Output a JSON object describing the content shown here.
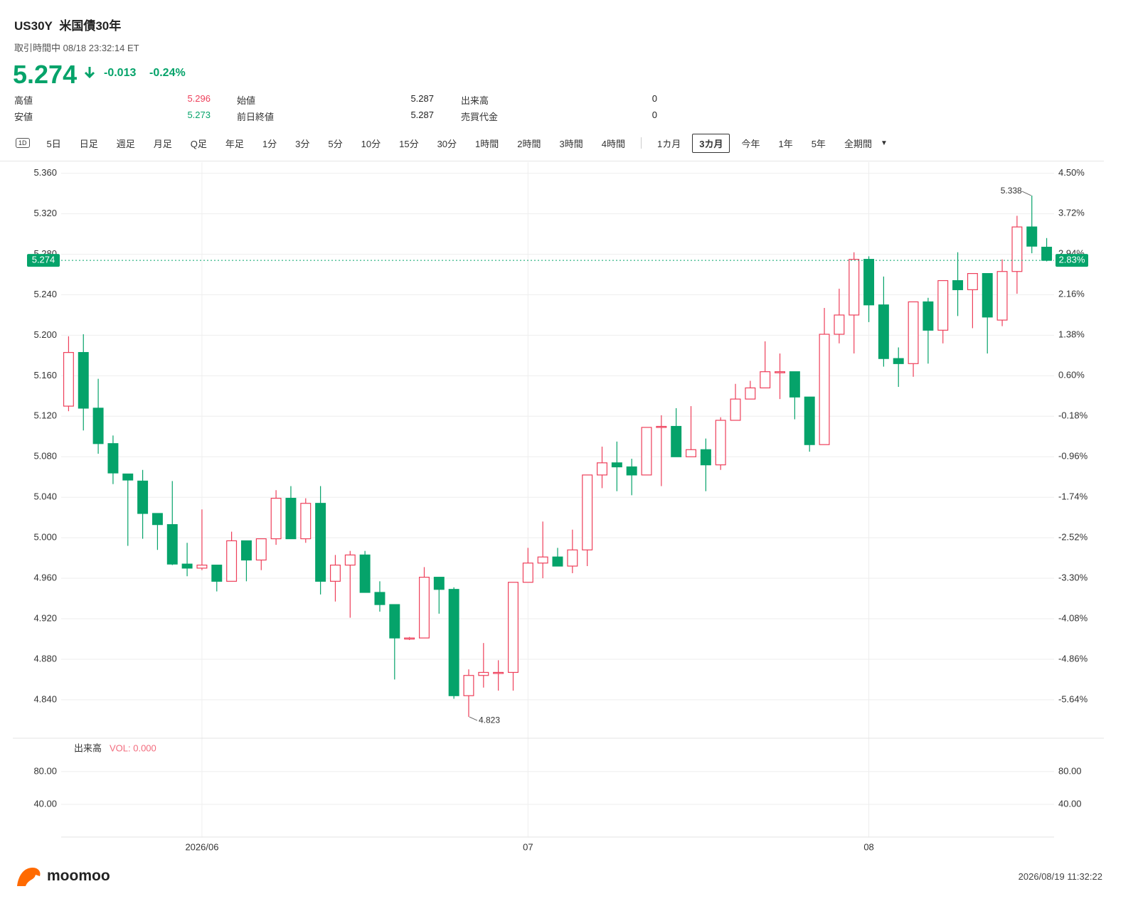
{
  "header": {
    "symbol": "US30Y",
    "name": "米国債30年",
    "status": "取引時間中 08/18 23:32:14 ET",
    "price": "5.274",
    "change": "-0.013",
    "change_pct": "-0.24%"
  },
  "stats": [
    [
      {
        "label": "高値",
        "value": "5.296"
      },
      {
        "label": "始値",
        "value": "5.287"
      },
      {
        "label": "出来高",
        "value": "0"
      }
    ],
    [
      {
        "label": "安値",
        "value": "5.273"
      },
      {
        "label": "前日終値",
        "value": "5.287"
      },
      {
        "label": "売買代金",
        "value": "0"
      }
    ]
  ],
  "toolbar": {
    "icon": "1D",
    "intervals": [
      "5日",
      "日足",
      "週足",
      "月足",
      "Q足",
      "年足",
      "1分",
      "3分",
      "5分",
      "10分",
      "15分",
      "30分",
      "1時間",
      "2時間",
      "3時間",
      "4時間"
    ],
    "ranges": [
      "1カ月",
      "3カ月",
      "今年",
      "1年",
      "5年",
      "全期間"
    ],
    "selected_range": 1
  },
  "chart_data": [
    {
      "type": "candlestick",
      "categories": [
        null,
        null,
        null,
        null,
        null,
        null,
        null,
        null,
        null,
        "2026/06",
        null,
        null,
        null,
        null,
        null,
        null,
        null,
        null,
        null,
        null,
        null,
        null,
        null,
        null,
        null,
        null,
        null,
        null,
        null,
        null,
        null,
        "07",
        null,
        null,
        null,
        null,
        null,
        null,
        null,
        null,
        null,
        null,
        null,
        null,
        null,
        null,
        null,
        null,
        null,
        null,
        null,
        null,
        null,
        null,
        "08",
        null,
        null,
        null,
        null,
        null,
        null,
        null,
        null,
        null,
        null,
        null,
        null
      ],
      "open": [
        5.13,
        5.183,
        5.128,
        5.093,
        5.063,
        5.056,
        5.024,
        5.013,
        4.974,
        4.97,
        4.973,
        4.957,
        4.997,
        4.978,
        4.999,
        5.039,
        4.999,
        5.034,
        4.957,
        4.973,
        4.983,
        4.946,
        4.934,
        4.9,
        4.901,
        4.961,
        4.949,
        4.844,
        4.864,
        4.866,
        4.867,
        4.956,
        4.975,
        4.981,
        4.972,
        4.988,
        5.062,
        5.074,
        5.07,
        5.062,
        5.109,
        5.11,
        5.08,
        5.087,
        5.072,
        5.116,
        5.137,
        5.148,
        5.163,
        5.164,
        5.139,
        5.092,
        5.201,
        5.22,
        5.275,
        5.23,
        5.177,
        5.172,
        5.233,
        5.205,
        5.254,
        5.245,
        5.261,
        5.215,
        5.263,
        5.307,
        5.287
      ],
      "high": [
        5.199,
        5.201,
        5.157,
        5.101,
        5.063,
        5.067,
        5.024,
        5.056,
        4.995,
        5.028,
        4.973,
        5.006,
        4.997,
        4.999,
        5.047,
        5.051,
        5.039,
        5.051,
        4.983,
        4.987,
        4.987,
        4.957,
        4.934,
        4.902,
        4.971,
        4.961,
        4.951,
        4.87,
        4.896,
        4.879,
        4.956,
        4.99,
        5.016,
        4.99,
        5.008,
        5.062,
        5.09,
        5.095,
        5.078,
        5.109,
        5.121,
        5.128,
        5.13,
        5.098,
        5.119,
        5.152,
        5.155,
        5.194,
        5.182,
        5.164,
        5.139,
        5.227,
        5.246,
        5.282,
        5.278,
        5.258,
        5.188,
        5.233,
        5.237,
        5.254,
        5.282,
        5.261,
        5.261,
        5.275,
        5.318,
        5.338,
        5.296
      ],
      "low": [
        5.125,
        5.106,
        5.083,
        5.053,
        4.992,
        4.999,
        4.988,
        4.973,
        4.962,
        4.968,
        4.947,
        4.957,
        4.957,
        4.968,
        4.993,
        4.999,
        4.995,
        4.944,
        4.937,
        4.921,
        4.946,
        4.927,
        4.86,
        4.899,
        4.901,
        4.925,
        4.841,
        4.823,
        4.852,
        4.849,
        4.849,
        4.956,
        4.96,
        4.972,
        4.965,
        4.972,
        5.049,
        5.046,
        5.042,
        5.062,
        5.051,
        5.08,
        5.08,
        5.046,
        5.067,
        5.116,
        5.137,
        5.148,
        5.137,
        5.117,
        5.085,
        5.092,
        5.192,
        5.182,
        5.213,
        5.169,
        5.149,
        5.159,
        5.172,
        5.192,
        5.219,
        5.207,
        5.182,
        5.209,
        5.241,
        5.281,
        5.273
      ],
      "close": [
        5.183,
        5.128,
        5.093,
        5.064,
        5.057,
        5.024,
        5.013,
        4.974,
        4.97,
        4.973,
        4.957,
        4.997,
        4.978,
        4.999,
        5.039,
        4.999,
        5.034,
        4.957,
        4.973,
        4.983,
        4.946,
        4.934,
        4.901,
        4.901,
        4.961,
        4.949,
        4.844,
        4.864,
        4.867,
        4.867,
        4.956,
        4.975,
        4.981,
        4.972,
        4.988,
        5.062,
        5.074,
        5.07,
        5.062,
        5.109,
        5.11,
        5.08,
        5.087,
        5.072,
        5.116,
        5.137,
        5.148,
        5.164,
        5.164,
        5.139,
        5.092,
        5.201,
        5.22,
        5.275,
        5.23,
        5.177,
        5.172,
        5.233,
        5.205,
        5.254,
        5.245,
        5.261,
        5.218,
        5.263,
        5.307,
        5.288,
        5.274
      ],
      "up_color": "#ee3f5a",
      "down_color": "#05a36a",
      "ylim": [
        4.802,
        5.371
      ],
      "yticks": [
        {
          "value": 5.36,
          "label": "5.360"
        },
        {
          "value": 5.32,
          "label": "5.320"
        },
        {
          "value": 5.28,
          "label": "5.280"
        },
        {
          "value": 5.24,
          "label": "5.240"
        },
        {
          "value": 5.2,
          "label": "5.200"
        },
        {
          "value": 5.16,
          "label": "5.160"
        },
        {
          "value": 5.12,
          "label": "5.120"
        },
        {
          "value": 5.08,
          "label": "5.080"
        },
        {
          "value": 5.04,
          "label": "5.040"
        },
        {
          "value": 5.0,
          "label": "5.000"
        },
        {
          "value": 4.96,
          "label": "4.960"
        },
        {
          "value": 4.92,
          "label": "4.920"
        },
        {
          "value": 4.88,
          "label": "4.880"
        },
        {
          "value": 4.84,
          "label": "4.840"
        }
      ],
      "y2lim": [
        -6.38,
        4.71
      ],
      "y2ticks": [
        {
          "value": 4.5,
          "label": "4.50%"
        },
        {
          "value": 3.72,
          "label": "3.72%"
        },
        {
          "value": 2.94,
          "label": "2.94%"
        },
        {
          "value": 2.16,
          "label": "2.16%"
        },
        {
          "value": 1.38,
          "label": "1.38%"
        },
        {
          "value": 0.6,
          "label": "0.60%"
        },
        {
          "value": -0.18,
          "label": "-0.18%"
        },
        {
          "value": -0.96,
          "label": "-0.96%"
        },
        {
          "value": -1.74,
          "label": "-1.74%"
        },
        {
          "value": -2.52,
          "label": "-2.52%"
        },
        {
          "value": -3.3,
          "label": "-3.30%"
        },
        {
          "value": -4.08,
          "label": "-4.08%"
        },
        {
          "value": -4.86,
          "label": "-4.86%"
        },
        {
          "value": -5.64,
          "label": "-5.64%"
        }
      ],
      "grid": true,
      "last_price": 5.274,
      "last_price_pct": {
        "value": 2.83,
        "label": "2.83%"
      }
    },
    {
      "type": "volume",
      "title": "出来高",
      "legend": "VOL: 0.000",
      "ylim": [
        0,
        119
      ],
      "yticks": [
        {
          "value": 80,
          "label": "80.00"
        },
        {
          "value": 40,
          "label": "40.00"
        }
      ],
      "grid": true
    }
  ],
  "footer": {
    "brand": "moomoo",
    "timestamp": "2026/08/19 11:32:22"
  }
}
